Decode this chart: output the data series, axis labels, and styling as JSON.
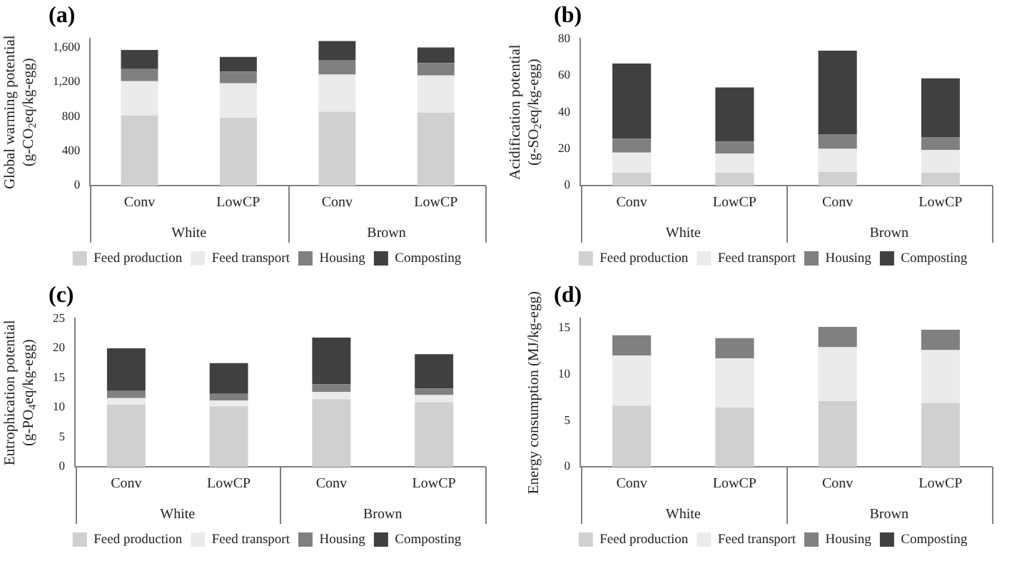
{
  "chart_data": [
    {
      "type": "bar",
      "title": "(a)",
      "ylabel": "Global warming potential (g-CO$_{2}$eq/kg-egg)",
      "categories": [
        "Conv",
        "LowCP",
        "Conv",
        "LowCP"
      ],
      "annotations": [
        "White",
        "Brown"
      ],
      "stacked": true,
      "legend": "bottom",
      "ylim": [
        0,
        1700
      ],
      "yticks": [
        0,
        400,
        800,
        {
          "value": 1200,
          "label": "1,200"
        },
        {
          "value": 1600,
          "label": "1,600"
        }
      ],
      "series": [
        {
          "name": "Feed production",
          "color": "#d0d0d0",
          "values": [
            810,
            785,
            855,
            845
          ]
        },
        {
          "name": "Feed transport",
          "color": "#ebebeb",
          "values": [
            400,
            400,
            430,
            430
          ]
        },
        {
          "name": "Housing",
          "color": "#808080",
          "values": [
            140,
            135,
            165,
            145
          ]
        },
        {
          "name": "Composting",
          "color": "#404040",
          "values": [
            220,
            170,
            225,
            180
          ]
        }
      ]
    },
    {
      "type": "bar",
      "title": "(b)",
      "ylabel": "Acidification potential (g-SO$_{2}$eq/kg-egg)",
      "categories": [
        "Conv",
        "LowCP",
        "Conv",
        "LowCP"
      ],
      "annotations": [
        "White",
        "Brown"
      ],
      "stacked": true,
      "legend": "bottom",
      "ylim": [
        0,
        80
      ],
      "yticks": [
        0,
        20,
        40,
        60,
        80
      ],
      "series": [
        {
          "name": "Feed production",
          "color": "#d0d0d0",
          "values": [
            7,
            7,
            7.5,
            7
          ]
        },
        {
          "name": "Feed transport",
          "color": "#ebebeb",
          "values": [
            11,
            10.5,
            12.5,
            12.5
          ]
        },
        {
          "name": "Housing",
          "color": "#808080",
          "values": [
            7.5,
            6.5,
            8,
            7
          ]
        },
        {
          "name": "Composting",
          "color": "#404040",
          "values": [
            41,
            29.5,
            45.5,
            32
          ]
        }
      ]
    },
    {
      "type": "bar",
      "title": "(c)",
      "ylabel": "Eutrophication potential (g-PO$_{4}$eq/kg-egg)",
      "categories": [
        "Conv",
        "LowCP",
        "Conv",
        "LowCP"
      ],
      "annotations": [
        "White",
        "Brown"
      ],
      "stacked": true,
      "legend": "bottom",
      "ylim": [
        0,
        25
      ],
      "yticks": [
        0,
        5,
        10,
        15,
        20,
        25
      ],
      "series": [
        {
          "name": "Feed production",
          "color": "#d0d0d0",
          "values": [
            10.5,
            10.2,
            11.4,
            10.9
          ]
        },
        {
          "name": "Feed transport",
          "color": "#ebebeb",
          "values": [
            1.1,
            1.0,
            1.2,
            1.2
          ]
        },
        {
          "name": "Housing",
          "color": "#808080",
          "values": [
            1.2,
            1.1,
            1.3,
            1.1
          ]
        },
        {
          "name": "Composting",
          "color": "#404040",
          "values": [
            7.2,
            5.2,
            7.9,
            5.8
          ]
        }
      ]
    },
    {
      "type": "bar",
      "title": "(d)",
      "ylabel": "Energy consumption (MJ/kg-egg)",
      "categories": [
        "Conv",
        "LowCP",
        "Conv",
        "LowCP"
      ],
      "annotations": [
        "White",
        "Brown"
      ],
      "stacked": true,
      "legend": "bottom",
      "ylim": [
        0,
        16
      ],
      "yticks": [
        0,
        5,
        10,
        15
      ],
      "series": [
        {
          "name": "Feed production",
          "color": "#d0d0d0",
          "values": [
            6.6,
            6.4,
            7.1,
            6.9
          ]
        },
        {
          "name": "Feed transport",
          "color": "#ebebeb",
          "values": [
            5.4,
            5.3,
            5.8,
            5.7
          ]
        },
        {
          "name": "Housing",
          "color": "#808080",
          "values": [
            2.2,
            2.2,
            2.2,
            2.2
          ]
        },
        {
          "name": "Composting",
          "color": "#404040",
          "values": [
            null,
            null,
            null,
            null
          ]
        }
      ]
    }
  ]
}
